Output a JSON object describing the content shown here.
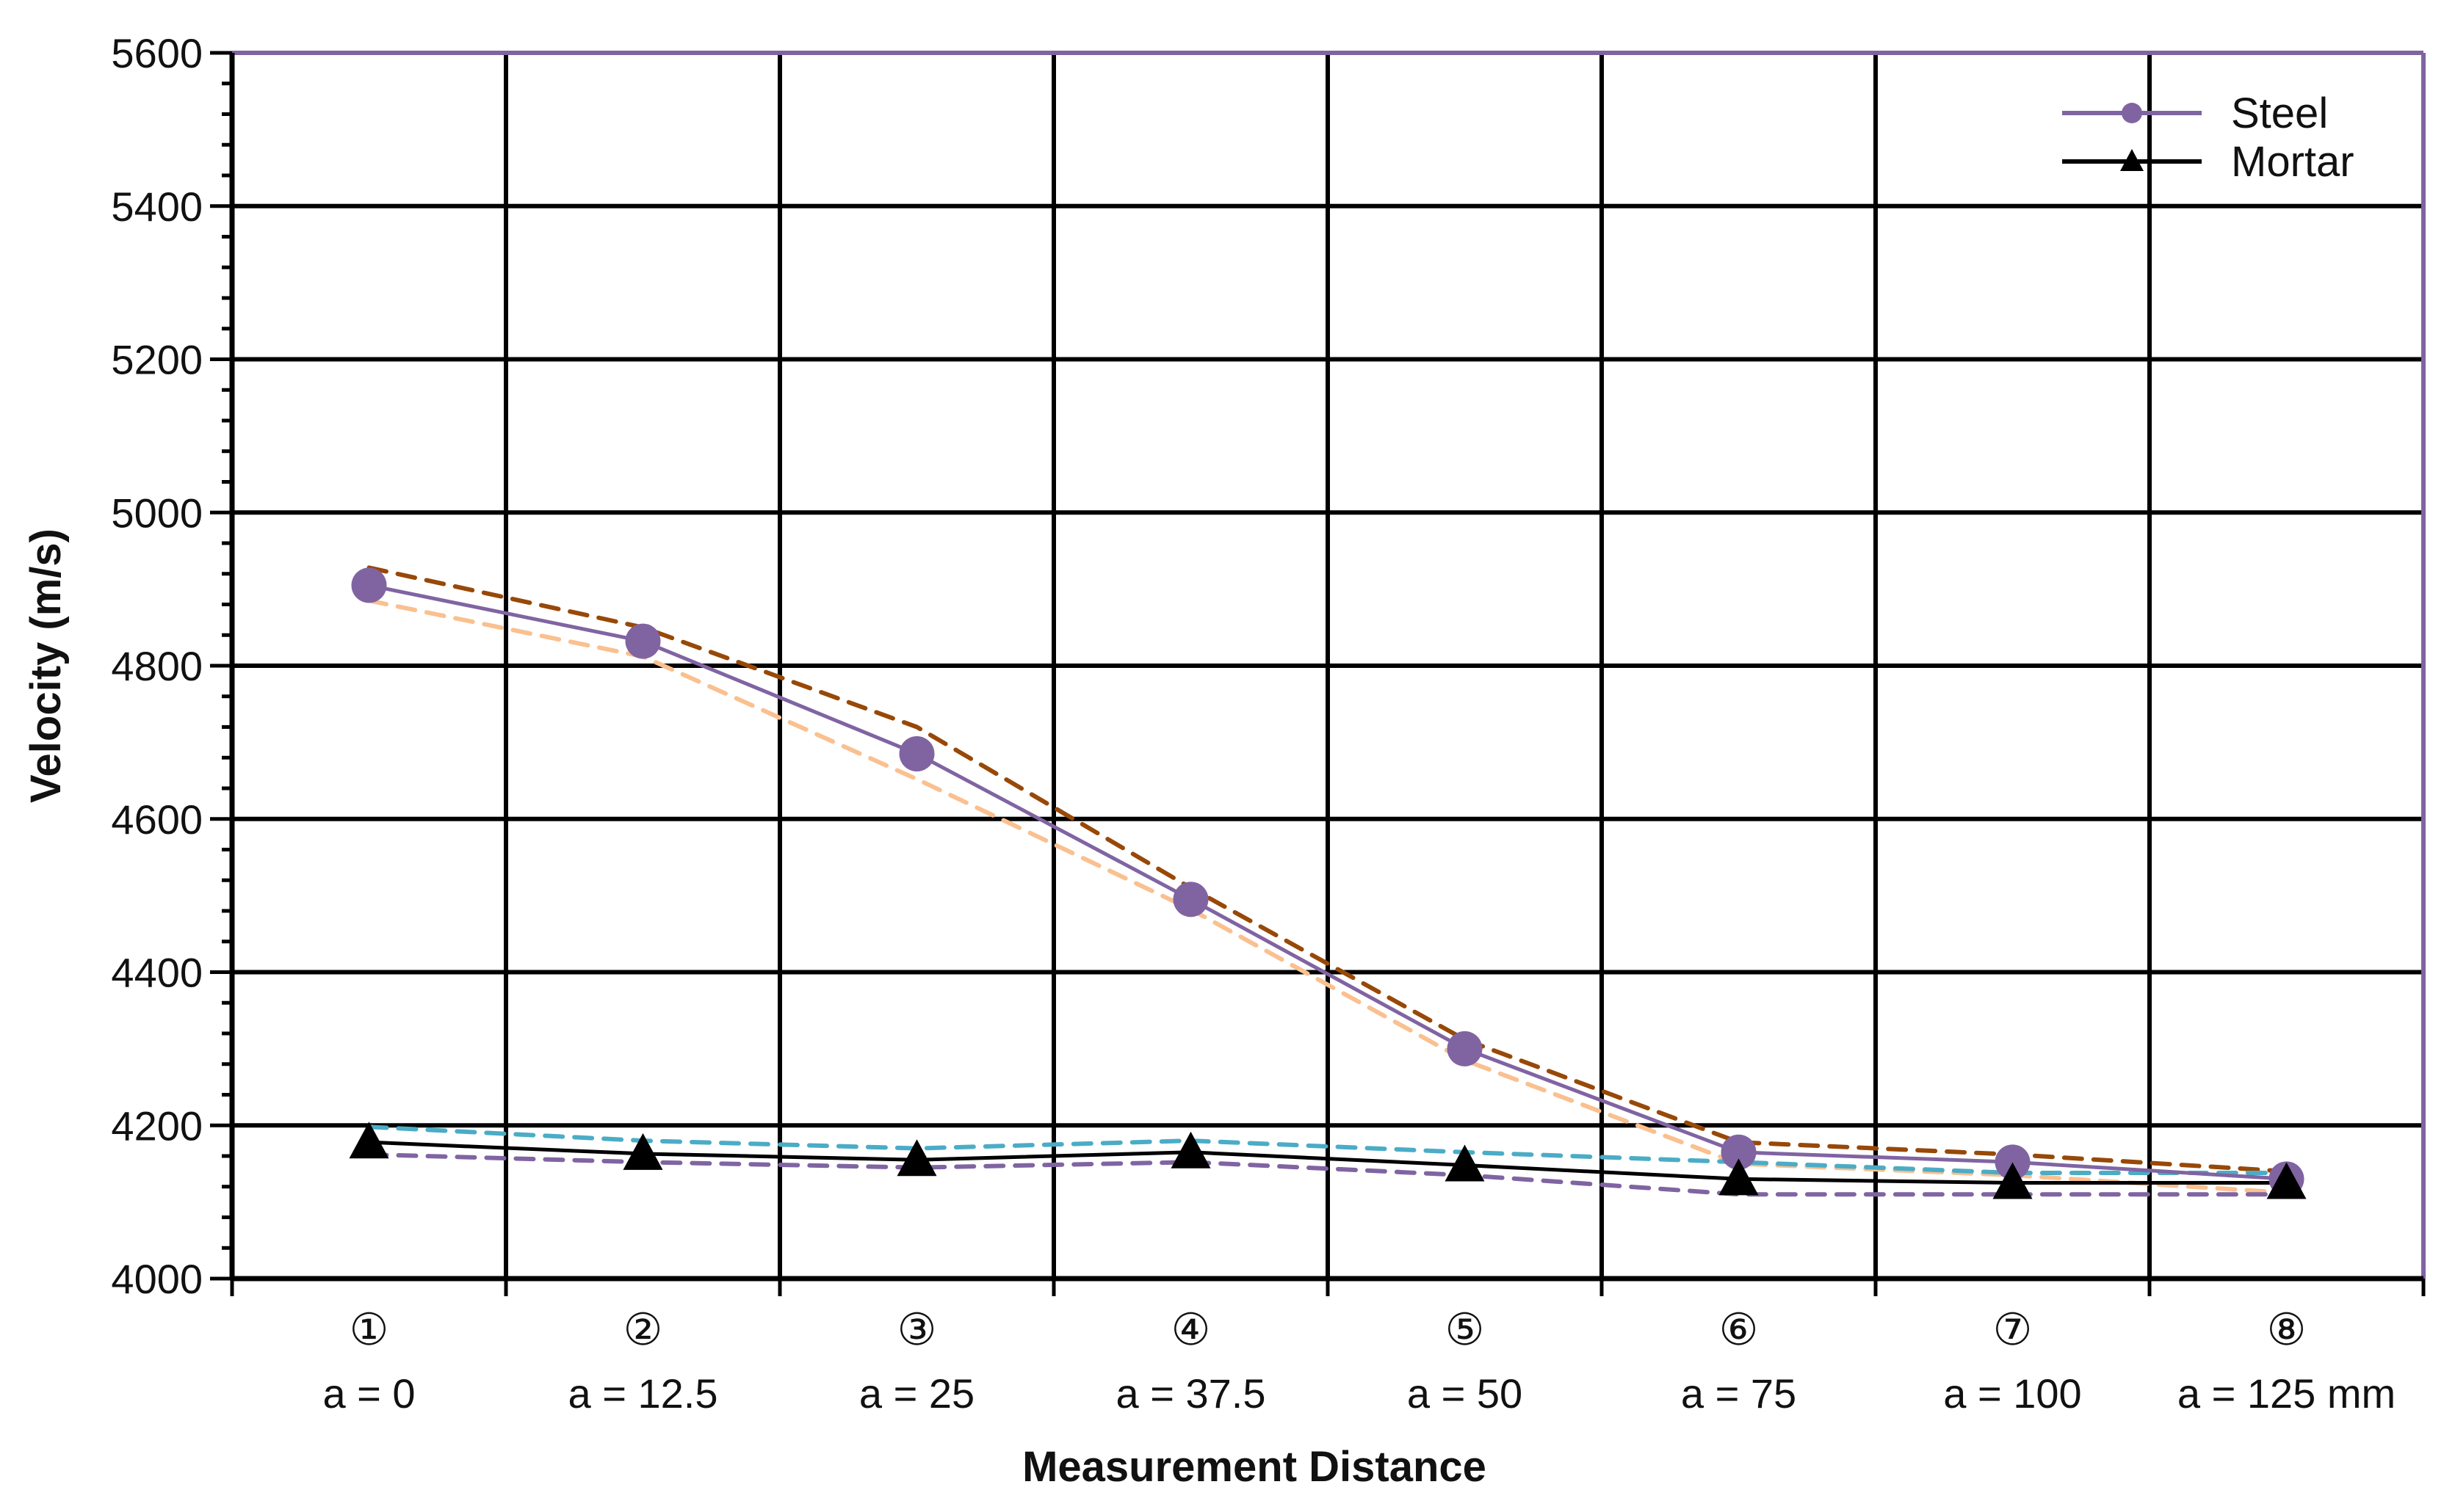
{
  "chart_data": {
    "type": "line",
    "xlabel": "Measurement Distance",
    "ylabel": "Velocity (m/s)",
    "ylim": [
      4000,
      5600
    ],
    "ytick_step": 200,
    "grid": true,
    "legend_position": "top-right",
    "categories": [
      {
        "num": "①",
        "label": "a = 0"
      },
      {
        "num": "②",
        "label": "a = 12.5"
      },
      {
        "num": "③",
        "label": "a = 25"
      },
      {
        "num": "④",
        "label": "a = 37.5"
      },
      {
        "num": "⑤",
        "label": "a = 50"
      },
      {
        "num": "⑥",
        "label": "a = 75"
      },
      {
        "num": "⑦",
        "label": "a = 100"
      },
      {
        "num": "⑧",
        "label": "a = 125 mm"
      }
    ],
    "yticks": [
      "4000",
      "4200",
      "4400",
      "4600",
      "4800",
      "5000",
      "5200",
      "5400",
      "5600"
    ],
    "series": [
      {
        "name": "Steel",
        "color": "#8064a2",
        "dash": "solid",
        "marker": "circle",
        "in_legend": true,
        "values": [
          4905,
          4832,
          4685,
          4495,
          4300,
          4165,
          4152,
          4130
        ]
      },
      {
        "name": "Mortar",
        "color": "#000000",
        "dash": "solid",
        "marker": "triangle",
        "in_legend": true,
        "values": [
          4178,
          4163,
          4155,
          4165,
          4148,
          4130,
          4125,
          4125
        ]
      },
      {
        "color": "#984807",
        "dash": "dashed",
        "marker": "none",
        "in_legend": false,
        "values": [
          4928,
          4850,
          4720,
          4510,
          4312,
          4178,
          4162,
          4140
        ]
      },
      {
        "color": "#fac090",
        "dash": "dashed",
        "marker": "none",
        "in_legend": false,
        "values": [
          4885,
          4812,
          4652,
          4482,
          4285,
          4150,
          4135,
          4112
        ]
      },
      {
        "color": "#4bacc6",
        "dash": "dashed",
        "marker": "none",
        "in_legend": false,
        "values": [
          4198,
          4180,
          4170,
          4180,
          4165,
          4152,
          4138,
          4138
        ]
      },
      {
        "color": "#8064a2",
        "dash": "dashed",
        "marker": "none",
        "in_legend": false,
        "values": [
          4162,
          4152,
          4145,
          4152,
          4135,
          4110,
          4110,
          4110
        ]
      }
    ]
  }
}
